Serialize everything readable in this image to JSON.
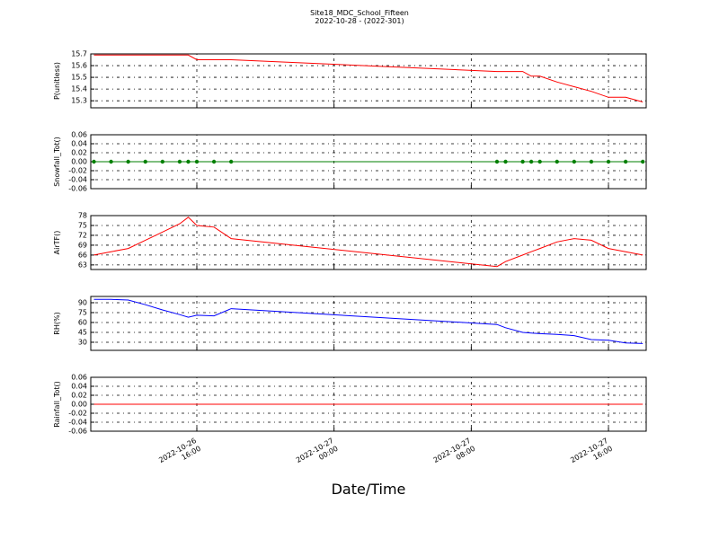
{
  "chart_data": [
    {
      "type": "line",
      "title": "Site18_MDC_School_Fifteen",
      "subtitle": "2022-10-28 - (2022-301)",
      "ylabel": "P(unitless)",
      "color": "#ff0000",
      "markers": false,
      "grid": true,
      "x": [
        "2022-10-26 10:00",
        "2022-10-26 11:00",
        "2022-10-26 12:00",
        "2022-10-26 13:00",
        "2022-10-26 14:00",
        "2022-10-26 15:00",
        "2022-10-26 15:30",
        "2022-10-26 16:00",
        "2022-10-26 17:00",
        "2022-10-26 18:00",
        "2022-10-27 09:30",
        "2022-10-27 10:00",
        "2022-10-27 11:00",
        "2022-10-27 11:30",
        "2022-10-27 12:00",
        "2022-10-27 13:00",
        "2022-10-27 14:00",
        "2022-10-27 15:00",
        "2022-10-27 16:00",
        "2022-10-27 17:00",
        "2022-10-27 18:00"
      ],
      "values": [
        15.69,
        15.69,
        15.69,
        15.69,
        15.69,
        15.69,
        15.69,
        15.65,
        15.65,
        15.65,
        15.55,
        15.55,
        15.55,
        15.51,
        15.51,
        15.46,
        15.42,
        15.38,
        15.33,
        15.33,
        15.29
      ],
      "ylim": [
        15.24,
        15.7
      ],
      "yticks": [
        15.3,
        15.4,
        15.5,
        15.6,
        15.7
      ]
    },
    {
      "type": "line",
      "ylabel": "Snowfall_Tot()",
      "color": "#007f00",
      "markers": true,
      "grid": true,
      "x": [
        "2022-10-26 10:00",
        "2022-10-26 11:00",
        "2022-10-26 12:00",
        "2022-10-26 13:00",
        "2022-10-26 14:00",
        "2022-10-26 15:00",
        "2022-10-26 15:30",
        "2022-10-26 16:00",
        "2022-10-26 17:00",
        "2022-10-26 18:00",
        "2022-10-27 09:30",
        "2022-10-27 10:00",
        "2022-10-27 11:00",
        "2022-10-27 11:30",
        "2022-10-27 12:00",
        "2022-10-27 13:00",
        "2022-10-27 14:00",
        "2022-10-27 15:00",
        "2022-10-27 16:00",
        "2022-10-27 17:00",
        "2022-10-27 18:00"
      ],
      "values": [
        0,
        0,
        0,
        0,
        0,
        0,
        0,
        0,
        0,
        0,
        0,
        0,
        0,
        0,
        0,
        0,
        0,
        0,
        0,
        0,
        0
      ],
      "ylim": [
        -0.06,
        0.06
      ],
      "yticks": [
        -0.06,
        -0.04,
        -0.02,
        {
          "value": 0,
          "label": "0.00"
        },
        0.02,
        0.04,
        0.06
      ]
    },
    {
      "type": "line",
      "ylabel": "AirTF()",
      "color": "#ff0000",
      "markers": false,
      "grid": true,
      "x": [
        "2022-10-26 10:00",
        "2022-10-26 11:00",
        "2022-10-26 12:00",
        "2022-10-26 13:00",
        "2022-10-26 14:00",
        "2022-10-26 15:00",
        "2022-10-26 15:30",
        "2022-10-26 16:00",
        "2022-10-26 17:00",
        "2022-10-26 18:00",
        "2022-10-27 09:30",
        "2022-10-27 10:00",
        "2022-10-27 11:00",
        "2022-10-27 11:30",
        "2022-10-27 12:00",
        "2022-10-27 13:00",
        "2022-10-27 14:00",
        "2022-10-27 15:00",
        "2022-10-27 16:00",
        "2022-10-27 17:00",
        "2022-10-27 18:00"
      ],
      "values": [
        66,
        67,
        68,
        70.5,
        73,
        75.5,
        77.5,
        75,
        74.5,
        71,
        62.5,
        64,
        66,
        67,
        68,
        70,
        71,
        70.5,
        68,
        67,
        66
      ],
      "ylim": [
        61.6,
        78
      ],
      "yticks": [
        63,
        66,
        69,
        72,
        75,
        78
      ]
    },
    {
      "type": "line",
      "ylabel": "RH(%)",
      "color": "#0000ff",
      "markers": false,
      "grid": true,
      "x": [
        "2022-10-26 10:00",
        "2022-10-26 11:00",
        "2022-10-26 12:00",
        "2022-10-26 13:00",
        "2022-10-26 14:00",
        "2022-10-26 15:00",
        "2022-10-26 15:30",
        "2022-10-26 16:00",
        "2022-10-26 17:00",
        "2022-10-26 18:00",
        "2022-10-27 09:30",
        "2022-10-27 10:00",
        "2022-10-27 11:00",
        "2022-10-27 11:30",
        "2022-10-27 12:00",
        "2022-10-27 13:00",
        "2022-10-27 14:00",
        "2022-10-27 15:00",
        "2022-10-27 16:00",
        "2022-10-27 17:00",
        "2022-10-27 18:00"
      ],
      "values": [
        95,
        95,
        94,
        87,
        79,
        72,
        68,
        71,
        70,
        81,
        57,
        52,
        45,
        44,
        43,
        42,
        40,
        34,
        33,
        29,
        28
      ],
      "ylim": [
        17.7,
        99.5
      ],
      "yticks": [
        30,
        45,
        60,
        75,
        90
      ]
    },
    {
      "type": "line",
      "ylabel": "Rainfall_Tot()",
      "xlabel": "Date/Time",
      "color": "#ff0000",
      "markers": false,
      "grid": true,
      "x": [
        "2022-10-26 10:00",
        "2022-10-26 11:00",
        "2022-10-26 12:00",
        "2022-10-26 13:00",
        "2022-10-26 14:00",
        "2022-10-26 15:00",
        "2022-10-26 15:30",
        "2022-10-26 16:00",
        "2022-10-26 17:00",
        "2022-10-26 18:00",
        "2022-10-27 09:30",
        "2022-10-27 10:00",
        "2022-10-27 11:00",
        "2022-10-27 11:30",
        "2022-10-27 12:00",
        "2022-10-27 13:00",
        "2022-10-27 14:00",
        "2022-10-27 15:00",
        "2022-10-27 16:00",
        "2022-10-27 17:00",
        "2022-10-27 18:00"
      ],
      "values": [
        0,
        0,
        0,
        0,
        0,
        0,
        0,
        0,
        0,
        0,
        0,
        0,
        0,
        0,
        0,
        0,
        0,
        0,
        0,
        0,
        0
      ],
      "ylim": [
        -0.06,
        0.06
      ],
      "yticks": [
        -0.06,
        -0.04,
        -0.02,
        {
          "value": 0,
          "label": "0.00"
        },
        0.02,
        0.04,
        0.06
      ],
      "xlim": [
        "2022-10-26 09:49",
        "2022-10-27 18:12"
      ],
      "xticks": [
        "2022-10-26 16:00",
        "2022-10-27 00:00",
        "2022-10-27 08:00",
        "2022-10-27 16:00"
      ]
    }
  ]
}
